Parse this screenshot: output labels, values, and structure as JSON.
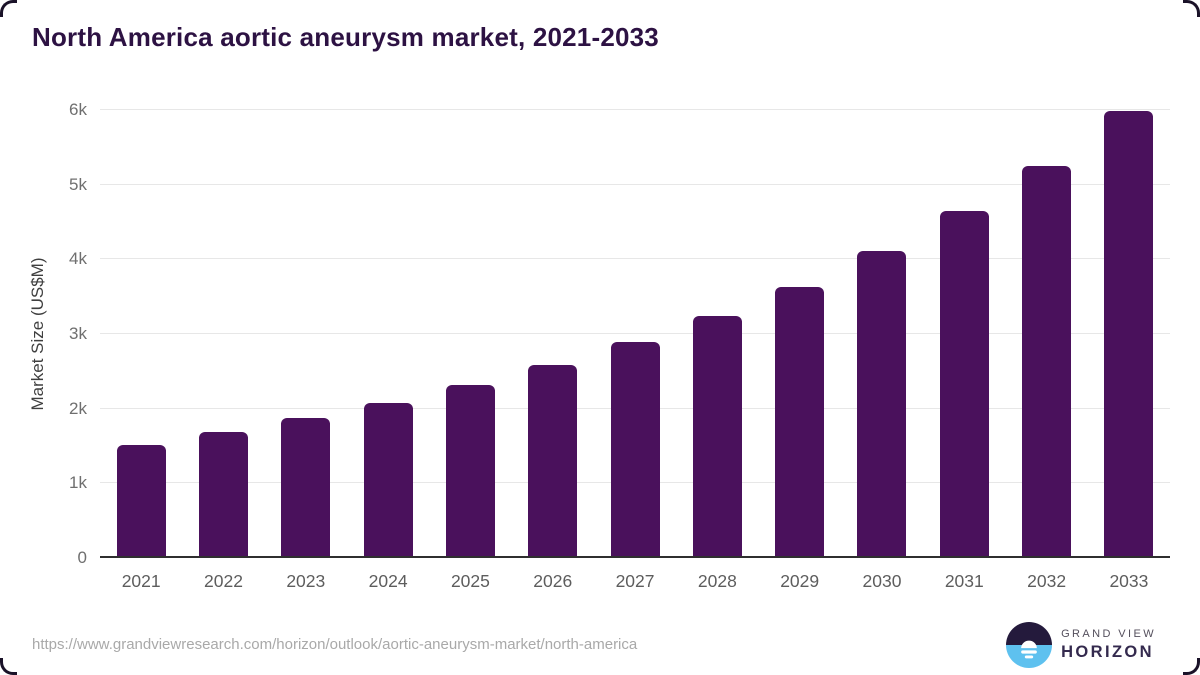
{
  "page": {
    "title": "North America aortic aneurysm market, 2021-2033"
  },
  "chart_data": {
    "type": "bar",
    "title": "North America aortic aneurysm market, 2021-2033",
    "categories": [
      "2021",
      "2022",
      "2023",
      "2024",
      "2025",
      "2026",
      "2027",
      "2028",
      "2029",
      "2030",
      "2031",
      "2032",
      "2033"
    ],
    "values": [
      1520,
      1690,
      1875,
      2075,
      2315,
      2585,
      2895,
      3240,
      3630,
      4110,
      4650,
      5250,
      5990
    ],
    "xlabel": "",
    "ylabel": "Market Size (US$M)",
    "ylim": [
      0,
      6000
    ],
    "ytick_labels": [
      "0",
      "1k",
      "2k",
      "3k",
      "4k",
      "5k",
      "6k"
    ],
    "grid": "horizontal",
    "legend": "none",
    "bar_color": "#4a115c"
  },
  "footer": {
    "source_url": "https://www.grandviewresearch.com/horizon/outlook/aortic-aneurysm-market/north-america",
    "brand": {
      "name_line1": "GRAND VIEW",
      "name_line2": "HORIZON",
      "logo_icon": "horizon-sunrise-icon"
    }
  },
  "colors": {
    "bar": "#4a115c",
    "title_text": "#2d1243",
    "tick_text": "#6f6f6f",
    "x_label_text": "#5d5d5d",
    "axis_line": "#2f2f2f",
    "gridline": "#e7e7e7",
    "url_text": "#a9a9a9",
    "logo_dark_half": "#241a3c",
    "logo_blue_half": "#5ec1ef",
    "corner_border": "#1a1228"
  }
}
